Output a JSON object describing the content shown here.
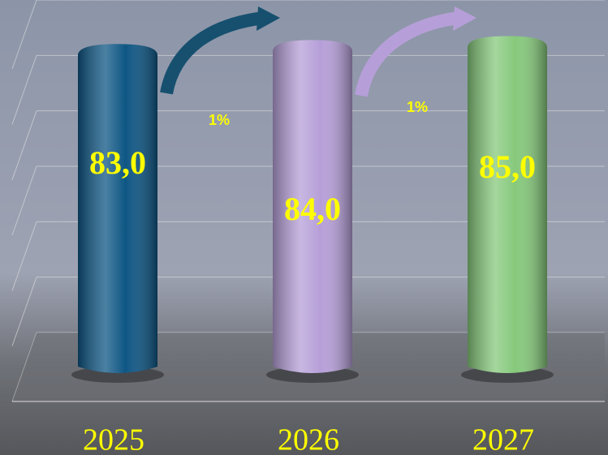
{
  "chart_data": {
    "type": "bar",
    "categories": [
      "2025",
      "2026",
      "2027"
    ],
    "series": [
      {
        "values": [
          83.0,
          84.0,
          85.0
        ],
        "value_labels": [
          "83,0",
          "84,0",
          "85,0"
        ],
        "colors": [
          "#0e5684",
          "#b69fd8",
          "#86c97c"
        ]
      }
    ],
    "ylim": [
      0,
      90
    ],
    "yticks": [
      0,
      15,
      30,
      45,
      60,
      75,
      90
    ],
    "grid": true,
    "annotations": [
      {
        "text": "1%"
      },
      {
        "text": "1%"
      }
    ]
  }
}
